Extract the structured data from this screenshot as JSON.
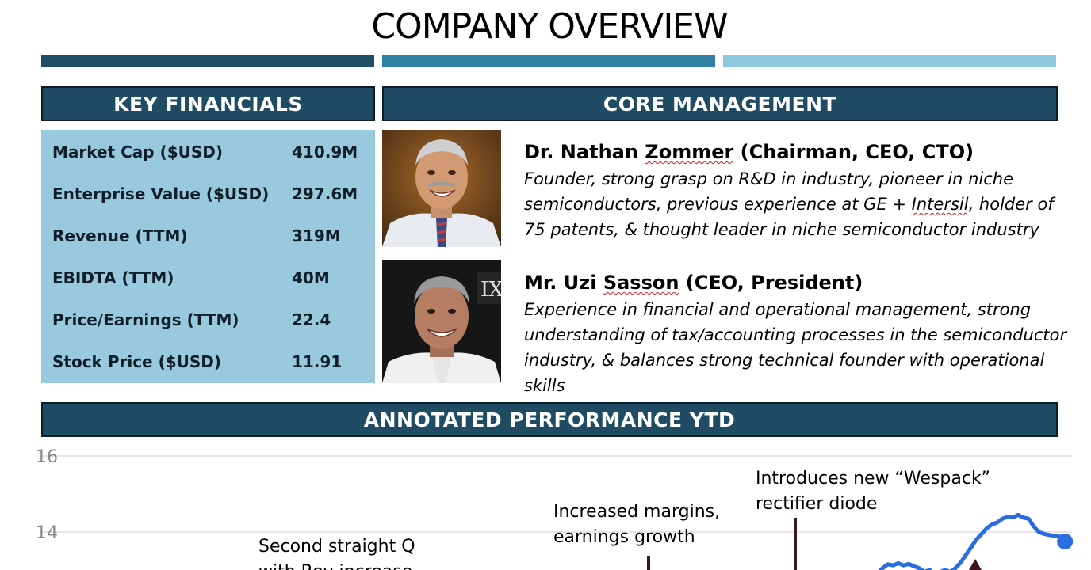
{
  "page": {
    "title": "COMPANY OVERVIEW",
    "stripe_colors": [
      "#1f4e63",
      "#2f80a3",
      "#8ec8dc"
    ]
  },
  "key_financials": {
    "header": "KEY FINANCIALS",
    "rows": [
      {
        "label": "Market Cap ($USD)",
        "value": "410.9M"
      },
      {
        "label": "Enterprise Value ($USD)",
        "value": "297.6M"
      },
      {
        "label": "Revenue (TTM)",
        "value": "319M"
      },
      {
        "label": "EBIDTA (TTM)",
        "value": "40M"
      },
      {
        "label": "Price/Earnings (TTM)",
        "value": "22.4"
      },
      {
        "label": "Stock Price ($USD)",
        "value": "11.91"
      }
    ]
  },
  "core_management": {
    "header": "CORE MANAGEMENT",
    "people": [
      {
        "title_prefix": "Dr. Nathan ",
        "surname": "Zommer",
        "role": " (Chairman, CEO, CTO)",
        "lines": [
          "Founder, strong grasp on R&D in industry, pioneer in niche",
          "semiconductors, previous experience at GE + ",
          "Intersil",
          ", holder of",
          "75 patents, & thought leader in niche semiconductor industry"
        ]
      },
      {
        "title_prefix": "Mr. Uzi ",
        "surname": "Sasson",
        "role": " (CEO, President)",
        "lines": [
          "Experience in financial and operational management, strong",
          "understanding of tax/accounting processes in the semiconductor",
          "industry, & balances strong technical founder with operational skills"
        ]
      }
    ]
  },
  "performance": {
    "header": "ANNOTATED PERFORMANCE YTD"
  },
  "chart_data": {
    "type": "line",
    "title": "",
    "y_ticks": [
      "16",
      "14"
    ],
    "ylim": [
      13,
      16
    ],
    "series": [
      {
        "values": [
          [
            0.795,
            12.9
          ],
          [
            0.8,
            13.05
          ],
          [
            0.805,
            13.15
          ],
          [
            0.81,
            13.12
          ],
          [
            0.815,
            13.18
          ],
          [
            0.82,
            13.12
          ],
          [
            0.825,
            13.16
          ],
          [
            0.83,
            13.1
          ],
          [
            0.835,
            13.05
          ],
          [
            0.84,
            12.95
          ],
          [
            0.845,
            13.0
          ],
          [
            0.85,
            12.9
          ],
          [
            0.855,
            12.95
          ],
          [
            0.86,
            13.0
          ],
          [
            0.865,
            12.95
          ],
          [
            0.87,
            13.05
          ],
          [
            0.875,
            13.2
          ],
          [
            0.88,
            13.4
          ],
          [
            0.885,
            13.6
          ],
          [
            0.89,
            13.8
          ],
          [
            0.895,
            13.95
          ],
          [
            0.9,
            14.1
          ],
          [
            0.905,
            14.2
          ],
          [
            0.91,
            14.25
          ],
          [
            0.915,
            14.35
          ],
          [
            0.92,
            14.4
          ],
          [
            0.925,
            14.38
          ],
          [
            0.93,
            14.45
          ],
          [
            0.935,
            14.38
          ],
          [
            0.94,
            14.35
          ],
          [
            0.945,
            14.15
          ],
          [
            0.95,
            14.0
          ],
          [
            0.955,
            13.95
          ],
          [
            0.96,
            13.92
          ],
          [
            0.965,
            13.9
          ],
          [
            0.97,
            13.88
          ],
          [
            0.975,
            13.75
          ]
        ],
        "color": "#2a6de0"
      }
    ],
    "annotations": [
      {
        "lines": [
          "Introduces new “Wespack”",
          "rectifier diode"
        ]
      },
      {
        "lines": [
          "Increased margins,",
          "earnings growth"
        ]
      },
      {
        "lines": [
          "Second straight Q",
          "with Rev increase"
        ]
      }
    ],
    "colors": {
      "grid": "#dddddd",
      "tick": "#888888",
      "line": "#2a6de0",
      "marker": "#3b1426"
    }
  }
}
